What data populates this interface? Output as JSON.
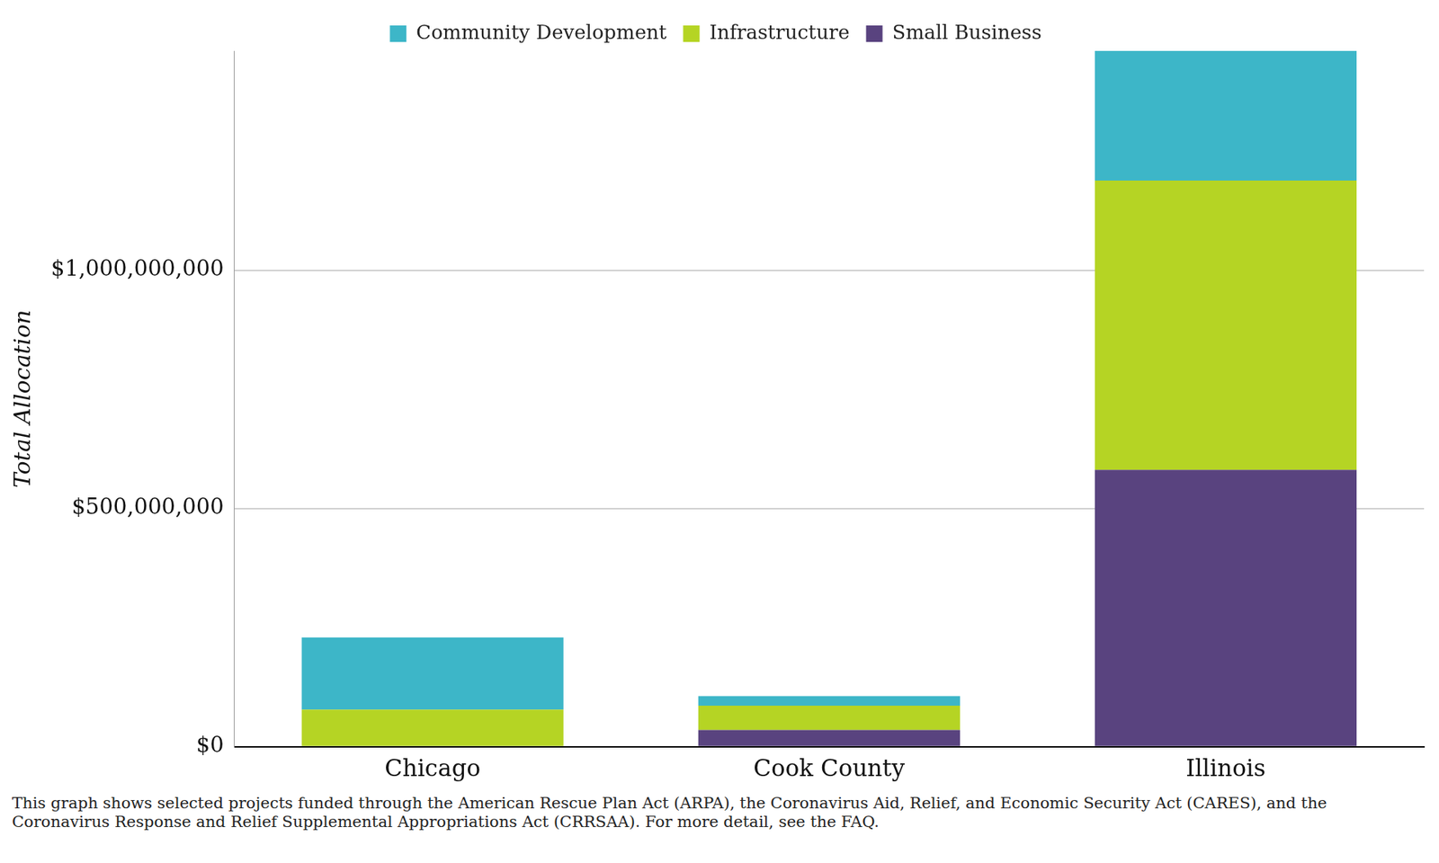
{
  "chart_data": {
    "type": "bar",
    "stacked": true,
    "grid": true,
    "legend": "top",
    "y_label": "Total Allocation",
    "caption": "This graph shows selected projects funded through the American Rescue Plan Act (ARPA), the Coronavirus Aid, Relief, and Economic Security Act (CARES), and the Coronavirus Response and Relief Supplemental Appropriations Act (CRRSAA). For more detail, see the FAQ.",
    "categories": [
      "Chicago",
      "Cook County",
      "Illinois"
    ],
    "series": [
      {
        "name": "Small Business",
        "color": "#59437f",
        "values": [
          0,
          35000000,
          581000000
        ]
      },
      {
        "name": "Infrastructure",
        "color": "#b5d424",
        "values": [
          78000000,
          51000000,
          607000000
        ]
      },
      {
        "name": "Community Development",
        "color": "#3db6c8",
        "values": [
          151000000,
          20000000,
          272000000
        ]
      }
    ],
    "ylim": [
      0,
      1460000000
    ],
    "yticks": [
      {
        "value": 0,
        "label": "$0"
      },
      {
        "value": 500000000,
        "label": "$500,000,000"
      },
      {
        "value": 1000000000,
        "label": "$1,000,000,000"
      }
    ]
  }
}
